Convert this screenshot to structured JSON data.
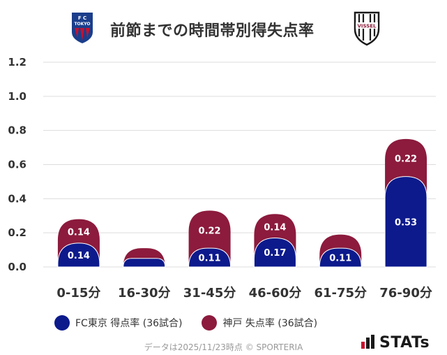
{
  "header": {
    "title": "前節までの時間帯別得失点率",
    "left_logo": {
      "letters": "F C TOKYO",
      "colors": {
        "blue": "#1b3e8c",
        "red": "#c8102e"
      }
    },
    "right_logo": {
      "letters": "VISSEL",
      "colors": {
        "dark": "#1a1a1a",
        "accent": "#8c1b3a"
      }
    }
  },
  "colors": {
    "fc_tokyo": "#0d1a8c",
    "kobe": "#8c1b3d",
    "grid": "#dddddd",
    "text": "#333333"
  },
  "chart_data": {
    "type": "bar",
    "stacked": true,
    "categories": [
      "0-15分",
      "16-30分",
      "31-45分",
      "46-60分",
      "61-75分",
      "76-90分"
    ],
    "series": [
      {
        "name": "FC東京 得点率 (36試合)",
        "values": [
          0.14,
          0.05,
          0.11,
          0.17,
          0.11,
          0.53
        ],
        "labels": [
          "0.14",
          "",
          "0.11",
          "0.17",
          "0.11",
          "0.53"
        ]
      },
      {
        "name": "神戸 失点率 (36試合)",
        "values": [
          0.14,
          0.06,
          0.22,
          0.14,
          0.08,
          0.22
        ],
        "labels": [
          "0.14",
          "",
          "0.22",
          "0.14",
          "",
          "0.22"
        ]
      }
    ],
    "ylim": [
      0,
      1.2
    ],
    "yticks": [
      "1.2",
      "1.0",
      "0.8",
      "0.6",
      "0.4",
      "0.2",
      "0.0"
    ],
    "ytick_values": [
      1.2,
      1.0,
      0.8,
      0.6,
      0.4,
      0.2,
      0.0
    ],
    "grid": true,
    "legend": "bottom"
  },
  "legend": {
    "items": [
      {
        "label": "FC東京 得点率 (36試合)"
      },
      {
        "label": "神戸 失点率 (36試合)"
      }
    ]
  },
  "footer": {
    "note": "データは2025/11/23時点 © SPORTERIA",
    "brand": "STATs"
  }
}
